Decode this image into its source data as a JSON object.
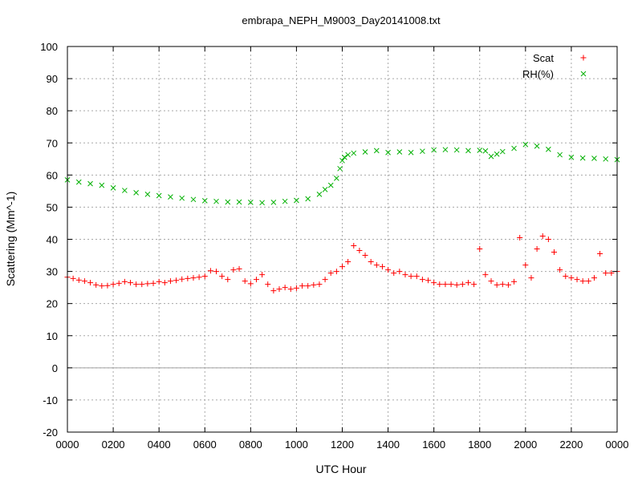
{
  "chart_data": {
    "type": "scatter",
    "title": "embrapa_NEPH_M9003_Day20141008.txt",
    "xlabel": "UTC Hour",
    "ylabel": "Scattering (Mm^-1)",
    "xlim": [
      0,
      24
    ],
    "ylim": [
      -20,
      100
    ],
    "x_ticks": [
      0,
      2,
      4,
      6,
      8,
      10,
      12,
      14,
      16,
      18,
      20,
      22,
      24
    ],
    "x_tick_labels": [
      "0000",
      "0200",
      "0400",
      "0600",
      "0800",
      "1000",
      "1200",
      "1400",
      "1600",
      "1800",
      "2000",
      "2200",
      "0000"
    ],
    "y_ticks": [
      -20,
      -10,
      0,
      10,
      20,
      30,
      40,
      50,
      60,
      70,
      80,
      90,
      100
    ],
    "y_tick_labels": [
      "-20",
      "-10",
      "0",
      "10",
      "20",
      "30",
      "40",
      "50",
      "60",
      "70",
      "80",
      "90",
      "100"
    ],
    "grid": true,
    "zero_line": true,
    "legend_position": "top-right",
    "series": [
      {
        "name": "Scat",
        "marker": "+",
        "color": "#ff0000",
        "x": [
          0.0,
          0.25,
          0.5,
          0.75,
          1.0,
          1.25,
          1.5,
          1.75,
          2.0,
          2.25,
          2.5,
          2.75,
          3.0,
          3.25,
          3.5,
          3.75,
          4.0,
          4.25,
          4.5,
          4.75,
          5.0,
          5.25,
          5.5,
          5.75,
          6.0,
          6.25,
          6.5,
          6.75,
          7.0,
          7.25,
          7.5,
          7.75,
          8.0,
          8.25,
          8.5,
          8.75,
          9.0,
          9.25,
          9.5,
          9.75,
          10.0,
          10.25,
          10.5,
          10.75,
          11.0,
          11.25,
          11.5,
          11.75,
          12.0,
          12.25,
          12.5,
          12.75,
          13.0,
          13.25,
          13.5,
          13.75,
          14.0,
          14.25,
          14.5,
          14.75,
          15.0,
          15.25,
          15.5,
          15.75,
          16.0,
          16.25,
          16.5,
          16.75,
          17.0,
          17.25,
          17.5,
          17.75,
          18.0,
          18.25,
          18.5,
          18.75,
          19.0,
          19.25,
          19.5,
          19.75,
          20.0,
          20.25,
          20.5,
          20.75,
          21.0,
          21.25,
          21.5,
          21.75,
          22.0,
          22.25,
          22.5,
          22.75,
          23.0,
          23.25,
          23.5,
          23.75,
          24.0
        ],
        "values": [
          28.2,
          27.8,
          27.3,
          27.0,
          26.5,
          25.8,
          25.5,
          25.6,
          26.0,
          26.3,
          26.8,
          26.5,
          26.0,
          26.0,
          26.2,
          26.3,
          26.8,
          26.5,
          27.0,
          27.2,
          27.6,
          27.8,
          28.0,
          28.2,
          28.5,
          30.2,
          30.0,
          28.5,
          27.5,
          30.5,
          30.8,
          27.0,
          26.2,
          27.5,
          29.0,
          26.0,
          24.0,
          24.5,
          25.0,
          24.5,
          24.8,
          25.5,
          25.5,
          25.8,
          26.0,
          27.5,
          29.5,
          30.0,
          31.5,
          33.0,
          38.0,
          36.5,
          35.0,
          33.0,
          32.0,
          31.5,
          30.5,
          29.5,
          30.0,
          29.0,
          28.5,
          28.5,
          27.5,
          27.2,
          26.5,
          26.0,
          26.0,
          26.0,
          25.8,
          26.0,
          26.5,
          26.0,
          37.0,
          29.0,
          27.0,
          25.8,
          26.0,
          25.8,
          26.8,
          40.5,
          32.0,
          28.0,
          37.0,
          41.0,
          40.0,
          36.0,
          30.5,
          28.5,
          28.0,
          27.5,
          27.0,
          27.0,
          28.0,
          35.5,
          29.5,
          29.5,
          30.0
        ]
      },
      {
        "name": "RH(%)",
        "marker": "x",
        "color": "#00b000",
        "x": [
          0.0,
          0.5,
          1.0,
          1.5,
          2.0,
          2.5,
          3.0,
          3.5,
          4.0,
          4.5,
          5.0,
          5.5,
          6.0,
          6.5,
          7.0,
          7.5,
          8.0,
          8.5,
          9.0,
          9.5,
          10.0,
          10.5,
          11.0,
          11.25,
          11.5,
          11.75,
          11.9,
          12.0,
          12.1,
          12.25,
          12.5,
          13.0,
          13.5,
          14.0,
          14.5,
          15.0,
          15.5,
          16.0,
          16.5,
          17.0,
          17.5,
          18.0,
          18.25,
          18.5,
          18.75,
          19.0,
          19.5,
          20.0,
          20.5,
          21.0,
          21.5,
          22.0,
          22.5,
          23.0,
          23.5,
          24.0
        ],
        "values": [
          58.5,
          57.8,
          57.3,
          56.8,
          56.0,
          55.2,
          54.5,
          54.0,
          53.6,
          53.2,
          52.8,
          52.4,
          52.0,
          51.8,
          51.6,
          51.6,
          51.5,
          51.4,
          51.5,
          51.8,
          52.1,
          52.6,
          54.0,
          55.5,
          56.8,
          59.0,
          62.0,
          64.5,
          65.5,
          66.3,
          66.8,
          67.2,
          67.6,
          67.0,
          67.2,
          67.0,
          67.4,
          67.8,
          67.9,
          67.8,
          67.6,
          67.7,
          67.5,
          65.8,
          66.5,
          67.3,
          68.3,
          69.5,
          69.0,
          68.0,
          66.3,
          65.5,
          65.3,
          65.2,
          65.0,
          64.8
        ]
      }
    ]
  }
}
